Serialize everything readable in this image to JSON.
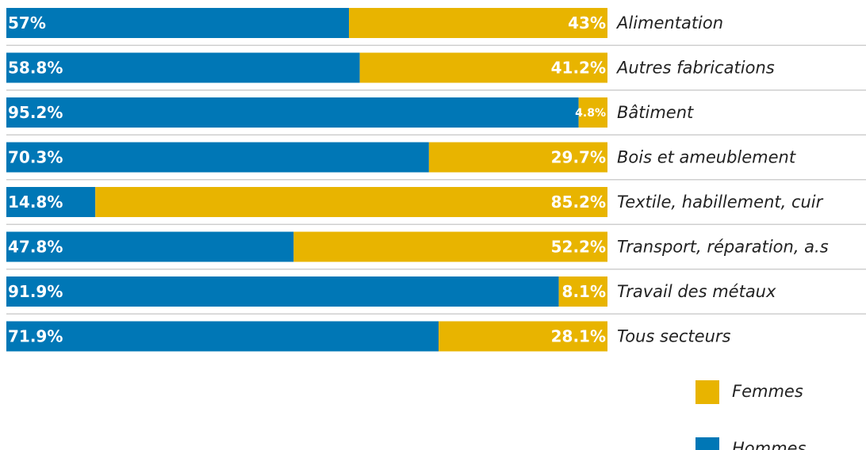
{
  "chart_data": {
    "type": "bar",
    "orientation": "horizontal",
    "stacked": true,
    "percent_stacked": true,
    "categories": [
      "Alimentation",
      "Autres fabrications",
      "Bâtiment",
      "Bois et ameublement",
      "Textile, habillement, cuir",
      "Transport, réparation, a.s",
      "Travail des métaux",
      "Tous secteurs"
    ],
    "series": [
      {
        "name": "Hommes",
        "color": "#0077b6",
        "values": [
          57,
          58.8,
          95.2,
          70.3,
          14.8,
          47.8,
          91.9,
          71.9
        ],
        "labels": [
          "57%",
          "58.8%",
          "95.2%",
          "70.3%",
          "14.8%",
          "47.8%",
          "91.9%",
          "71.9%"
        ]
      },
      {
        "name": "Femmes",
        "color": "#e8b400",
        "values": [
          43,
          41.2,
          4.8,
          29.7,
          85.2,
          52.2,
          8.1,
          28.1
        ],
        "labels": [
          "43%",
          "41.2%",
          "4.8%",
          "29.7%",
          "85.2%",
          "52.2%",
          "8.1%",
          "28.1%"
        ]
      }
    ],
    "xlim": [
      0,
      100
    ],
    "legend": {
      "position": "bottom-right",
      "order": [
        "Femmes",
        "Hommes"
      ]
    },
    "grid": false,
    "separator_color": "#cfcfcf"
  }
}
